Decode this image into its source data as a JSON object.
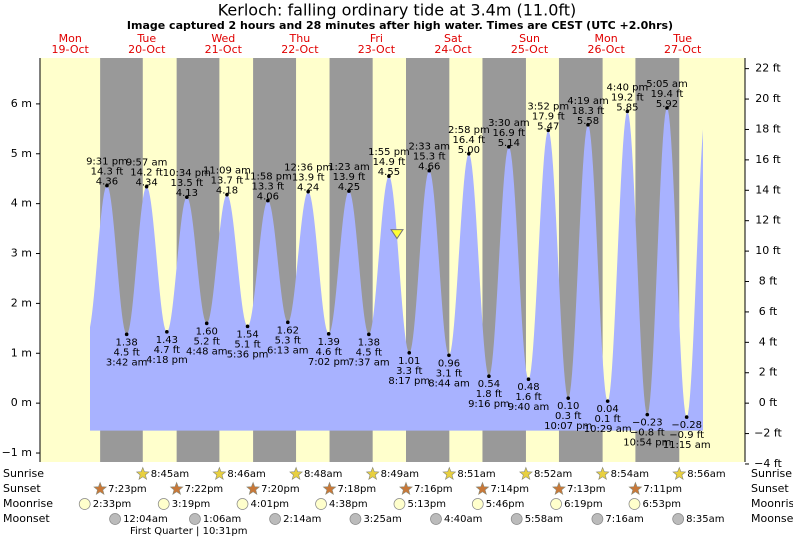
{
  "chart_data": {
    "type": "tide",
    "title": "Kerloch: falling  ordinary tide at 3.4m (11.0ft)",
    "subtitle": "Image captured 2 hours and 28 minutes after high water. Times are CEST (UTC +2.0hrs)",
    "current_tide_m": 3.4,
    "ylim": [
      -1.18,
      6.92
    ],
    "yticks": [
      {
        "value": -1,
        "label": "−1 m"
      },
      {
        "value": 0,
        "label": "0 m"
      },
      {
        "value": 1,
        "label": "1 m"
      },
      {
        "value": 2,
        "label": "2 m"
      },
      {
        "value": 3,
        "label": "3 m"
      },
      {
        "value": 4,
        "label": "4 m"
      },
      {
        "value": 5,
        "label": "5 m"
      },
      {
        "value": 6,
        "label": "6 m"
      }
    ],
    "y2lim": [
      -3.87,
      22.7
    ],
    "y2ticks": [
      {
        "value": -4,
        "label": "−4 ft"
      },
      {
        "value": -2,
        "label": "−2 ft"
      },
      {
        "value": 0,
        "label": "0 ft"
      },
      {
        "value": 2,
        "label": "2 ft"
      },
      {
        "value": 4,
        "label": "4 ft"
      },
      {
        "value": 6,
        "label": "6 ft"
      },
      {
        "value": 8,
        "label": "8 ft"
      },
      {
        "value": 10,
        "label": "10 ft"
      },
      {
        "value": 12,
        "label": "12 ft"
      },
      {
        "value": 14,
        "label": "14 ft"
      },
      {
        "value": 16,
        "label": "16 ft"
      },
      {
        "value": 18,
        "label": "18 ft"
      },
      {
        "value": 20,
        "label": "20 ft"
      },
      {
        "value": 22,
        "label": "22 ft"
      }
    ],
    "rows": [
      "Sunrise",
      "Sunset",
      "Moonrise",
      "Moonset"
    ],
    "moon_phase": "First Quarter | 10:31pm",
    "days": [
      {
        "weekday": "Mon",
        "date": "19-Oct",
        "sunset": "7:23pm",
        "moonrise": "2:33pm",
        "tides": [
          {
            "time": "9:31 pm",
            "value": 4.36,
            "label": "4.36",
            "feet": "14.3 ft"
          }
        ]
      },
      {
        "weekday": "Tue",
        "date": "20-Oct",
        "sunrise": "8:45am",
        "sunset": "7:22pm",
        "moonrise": "3:19pm",
        "moonset": "12:04am",
        "tides": [
          {
            "time": "3:42 am",
            "value": 1.38,
            "label": "1.38",
            "feet": "4.5 ft"
          },
          {
            "time": "9:57 am",
            "value": 4.34,
            "label": "4.34",
            "feet": "14.2 ft"
          },
          {
            "time": "4:18 pm",
            "value": 1.43,
            "label": "1.43",
            "feet": "4.7 ft"
          },
          {
            "time": "10:34 pm",
            "value": 4.13,
            "label": "4.13",
            "feet": "13.5 ft"
          }
        ]
      },
      {
        "weekday": "Wed",
        "date": "21-Oct",
        "sunrise": "8:46am",
        "sunset": "7:20pm",
        "moonrise": "4:01pm",
        "moonset": "1:06am",
        "tides": [
          {
            "time": "4:48 am",
            "value": 1.6,
            "label": "1.60",
            "feet": "5.2 ft"
          },
          {
            "time": "11:09 am",
            "value": 4.18,
            "label": "4.18",
            "feet": "13.7 ft"
          },
          {
            "time": "5:36 pm",
            "value": 1.54,
            "label": "1.54",
            "feet": "5.1 ft"
          },
          {
            "time": "11:58 pm",
            "value": 4.06,
            "label": "4.06",
            "feet": "13.3 ft"
          }
        ]
      },
      {
        "weekday": "Thu",
        "date": "22-Oct",
        "sunrise": "8:48am",
        "sunset": "7:18pm",
        "moonrise": "4:38pm",
        "moonset": "2:14am",
        "tides": [
          {
            "time": "6:13 am",
            "value": 1.62,
            "label": "1.62",
            "feet": "5.3 ft"
          },
          {
            "time": "12:36 pm",
            "value": 4.24,
            "label": "4.24",
            "feet": "13.9 ft"
          },
          {
            "time": "7:02 pm",
            "value": 1.39,
            "label": "1.39",
            "feet": "4.6 ft"
          }
        ]
      },
      {
        "weekday": "Fri",
        "date": "23-Oct",
        "sunrise": "8:49am",
        "sunset": "7:16pm",
        "moonrise": "5:13pm",
        "moonset": "3:25am",
        "tides": [
          {
            "time": "1:23 am",
            "value": 4.25,
            "label": "4.25",
            "feet": "13.9 ft"
          },
          {
            "time": "7:37 am",
            "value": 1.38,
            "label": "1.38",
            "feet": "4.5 ft"
          },
          {
            "time": "1:55 pm",
            "value": 4.55,
            "label": "4.55",
            "feet": "14.9 ft"
          },
          {
            "time": "8:17 pm",
            "value": 1.01,
            "label": "1.01",
            "feet": "3.3 ft"
          }
        ]
      },
      {
        "weekday": "Sat",
        "date": "24-Oct",
        "sunrise": "8:51am",
        "sunset": "7:14pm",
        "moonrise": "5:46pm",
        "moonset": "4:40am",
        "tides": [
          {
            "time": "2:33 am",
            "value": 4.66,
            "label": "4.66",
            "feet": "15.3 ft"
          },
          {
            "time": "8:44 am",
            "value": 0.96,
            "label": "0.96",
            "feet": "3.1 ft"
          },
          {
            "time": "2:58 pm",
            "value": 5,
            "label": "5.00",
            "feet": "16.4 ft"
          },
          {
            "time": "9:16 pm",
            "value": 0.54,
            "label": "0.54",
            "feet": "1.8 ft"
          }
        ]
      },
      {
        "weekday": "Sun",
        "date": "25-Oct",
        "sunrise": "8:52am",
        "sunset": "7:13pm",
        "moonrise": "6:19pm",
        "moonset": "5:58am",
        "tides": [
          {
            "time": "3:30 am",
            "value": 5.14,
            "label": "5.14",
            "feet": "16.9 ft"
          },
          {
            "time": "9:40 am",
            "value": 0.48,
            "label": "0.48",
            "feet": "1.6 ft"
          },
          {
            "time": "3:52 pm",
            "value": 5.47,
            "label": "5.47",
            "feet": "17.9 ft"
          },
          {
            "time": "10:07 pm",
            "value": 0.1,
            "label": "0.10",
            "feet": "0.3 ft"
          }
        ]
      },
      {
        "weekday": "Mon",
        "date": "26-Oct",
        "sunrise": "8:54am",
        "sunset": "7:11pm",
        "moonrise": "6:53pm",
        "moonset": "7:16am",
        "tides": [
          {
            "time": "4:19 am",
            "value": 5.58,
            "label": "5.58",
            "feet": "18.3 ft"
          },
          {
            "time": "10:29 am",
            "value": 0.04,
            "label": "0.04",
            "feet": "0.1 ft"
          },
          {
            "time": "4:40 pm",
            "value": 5.85,
            "label": "5.85",
            "feet": "19.2 ft"
          },
          {
            "time": "10:54 pm",
            "value": -0.23,
            "label": "−0.23",
            "feet": "−0.8 ft"
          }
        ]
      },
      {
        "weekday": "Tue",
        "date": "27-Oct",
        "sunrise": "8:56am",
        "moonset": "8:35am",
        "tides": [
          {
            "time": "5:05 am",
            "value": 5.92,
            "label": "5.92",
            "feet": "19.4 ft"
          },
          {
            "time": "11:15 am",
            "value": -0.28,
            "label": "−0.28",
            "feet": "−0.9 ft"
          }
        ]
      }
    ]
  }
}
